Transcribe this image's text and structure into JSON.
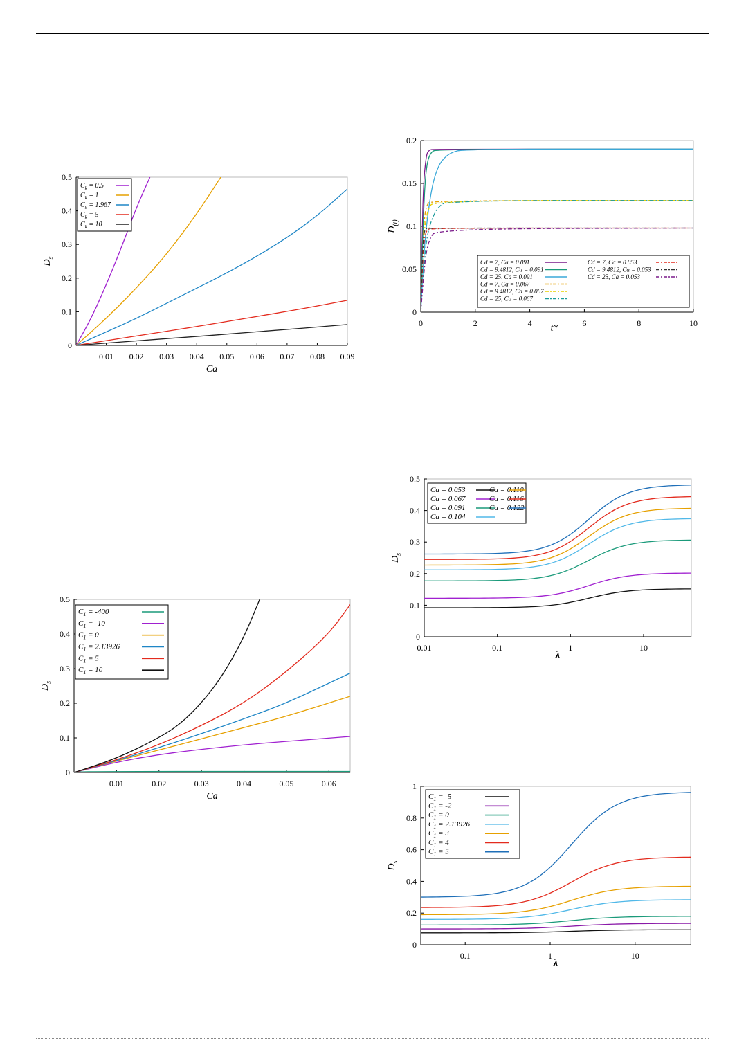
{
  "charts": [
    {
      "id": "c1",
      "type": "line",
      "xlabel": "Ca",
      "ylabel_main": "D",
      "ylabel_sub": "s",
      "xlim": [
        0,
        0.09
      ],
      "ylim": [
        0,
        0.5
      ],
      "xticks": [
        0.01,
        0.02,
        0.03,
        0.04,
        0.05,
        0.06,
        0.07,
        0.08,
        0.09
      ],
      "xtick_labels": [
        "0.01",
        "0.02",
        "0.03",
        "0.04",
        "0.05",
        "0.06",
        "0.07",
        "0.08",
        "0.09"
      ],
      "yticks": [
        0,
        0.1,
        0.2,
        0.3,
        0.4,
        0.5
      ],
      "ytick_labels": [
        "0",
        "0.1",
        "0.2",
        "0.3",
        "0.4",
        "0.5"
      ],
      "legend_position": "top-left",
      "series": [
        {
          "name": "C",
          "sub": "k",
          "suffix": " = 0.5",
          "color": "#a020d0",
          "x": [
            0,
            0.005,
            0.01,
            0.015,
            0.02,
            0.0245
          ],
          "y": [
            0,
            0.08,
            0.18,
            0.29,
            0.41,
            0.5
          ]
        },
        {
          "name": "C",
          "sub": "k",
          "suffix": " = 1",
          "color": "#e6a000",
          "x": [
            0,
            0.01,
            0.02,
            0.03,
            0.04,
            0.048
          ],
          "y": [
            0,
            0.08,
            0.17,
            0.27,
            0.39,
            0.5
          ]
        },
        {
          "name": "C",
          "sub": "k",
          "suffix": " = 1.967",
          "color": "#1f86c6",
          "x": [
            0,
            0.01,
            0.02,
            0.03,
            0.04,
            0.05,
            0.06,
            0.07,
            0.08,
            0.09
          ],
          "y": [
            0,
            0.04,
            0.08,
            0.125,
            0.17,
            0.215,
            0.265,
            0.32,
            0.385,
            0.465
          ]
        },
        {
          "name": "C",
          "sub": "k",
          "suffix": " = 5",
          "color": "#e32b1e",
          "x": [
            0,
            0.01,
            0.02,
            0.03,
            0.04,
            0.05,
            0.06,
            0.07,
            0.08,
            0.09
          ],
          "y": [
            0,
            0.014,
            0.028,
            0.042,
            0.056,
            0.071,
            0.086,
            0.101,
            0.117,
            0.134
          ]
        },
        {
          "name": "C",
          "sub": "k",
          "suffix": " = 10",
          "color": "#222222",
          "x": [
            0,
            0.03,
            0.06,
            0.09
          ],
          "y": [
            0,
            0.02,
            0.04,
            0.062
          ]
        }
      ]
    },
    {
      "id": "c2",
      "type": "line",
      "xlabel": "t*",
      "ylabel_main": "D",
      "ylabel_sub": "(t)",
      "xlim": [
        0,
        10
      ],
      "ylim": [
        0,
        0.2
      ],
      "xticks": [
        0,
        2,
        4,
        6,
        8,
        10
      ],
      "xtick_labels": [
        "0",
        "2",
        "4",
        "6",
        "8",
        "10"
      ],
      "yticks": [
        0,
        0.05,
        0.1,
        0.15,
        0.2
      ],
      "ytick_labels": [
        "0",
        "0.05",
        "0.1",
        "0.15",
        "0.2"
      ],
      "legend_position": "bottom-right",
      "series": [
        {
          "name": "Cd = 7, Ca = 0.091",
          "color": "#7a1a8a",
          "dash": "",
          "x": [
            0,
            0.05,
            0.1,
            0.2,
            0.3,
            0.5,
            10
          ],
          "y": [
            0,
            0.09,
            0.15,
            0.183,
            0.189,
            0.19,
            0.19
          ]
        },
        {
          "name": "Cd = 9.4812, Ca = 0.091",
          "color": "#1a9a7a",
          "dash": "",
          "x": [
            0,
            0.1,
            0.2,
            0.35,
            0.6,
            10
          ],
          "y": [
            0,
            0.12,
            0.17,
            0.186,
            0.19,
            0.19
          ]
        },
        {
          "name": "Cd = 25, Ca = 0.091",
          "color": "#3aa8d8",
          "dash": "",
          "x": [
            0,
            0.1,
            0.2,
            0.4,
            0.6,
            0.8,
            1.1,
            1.6,
            10
          ],
          "y": [
            0,
            0.06,
            0.1,
            0.145,
            0.167,
            0.178,
            0.186,
            0.19,
            0.19
          ]
        },
        {
          "name": "Cd = 7, Ca = 0.067",
          "color": "#e6a000",
          "dash": "6,3,2,3",
          "x": [
            0,
            0.1,
            0.2,
            0.4,
            10
          ],
          "y": [
            0,
            0.1,
            0.125,
            0.13,
            0.13
          ]
        },
        {
          "name": "Cd = 9.4812, Ca = 0.067",
          "color": "#e8d000",
          "dash": "6,3,2,3",
          "x": [
            0,
            0.1,
            0.25,
            0.5,
            10
          ],
          "y": [
            0,
            0.09,
            0.12,
            0.13,
            0.13
          ]
        },
        {
          "name": "Cd = 25, Ca = 0.067",
          "color": "#1a9a9a",
          "dash": "6,3,2,3",
          "x": [
            0,
            0.15,
            0.3,
            0.6,
            1.0,
            10
          ],
          "y": [
            0,
            0.07,
            0.1,
            0.122,
            0.13,
            0.13
          ]
        },
        {
          "name": "Cd = 7, Ca = 0.053",
          "color": "#e32b1e",
          "dash": "6,3,2,3",
          "x": [
            0,
            0.1,
            0.2,
            0.35,
            10
          ],
          "y": [
            0,
            0.08,
            0.095,
            0.098,
            0.098
          ]
        },
        {
          "name": "Cd = 9.4812, Ca = 0.053",
          "color": "#333333",
          "dash": "6,3,2,3",
          "x": [
            0,
            0.08,
            0.15,
            0.3,
            10
          ],
          "y": [
            0,
            0.085,
            0.097,
            0.098,
            0.098
          ]
        },
        {
          "name": "Cd = 25, Ca = 0.053",
          "color": "#7a1a8a",
          "dash": "6,3,2,3",
          "x": [
            0,
            0.15,
            0.3,
            0.6,
            10
          ],
          "y": [
            0,
            0.06,
            0.085,
            0.097,
            0.098
          ]
        }
      ]
    },
    {
      "id": "c3",
      "type": "line",
      "xlabel": "Ca",
      "ylabel_main": "D",
      "ylabel_sub": "s",
      "xlim": [
        0,
        0.065
      ],
      "ylim": [
        0,
        0.5
      ],
      "xticks": [
        0.01,
        0.02,
        0.03,
        0.04,
        0.05,
        0.06
      ],
      "xtick_labels": [
        "0.01",
        "0.02",
        "0.03",
        "0.04",
        "0.05",
        "0.06"
      ],
      "yticks": [
        0,
        0.1,
        0.2,
        0.3,
        0.4,
        0.5
      ],
      "ytick_labels": [
        "0",
        "0.1",
        "0.2",
        "0.3",
        "0.4",
        "0.5"
      ],
      "legend_position": "top-left",
      "series": [
        {
          "name": "C",
          "sub": "1",
          "suffix": " = -400",
          "color": "#1a9a7a",
          "x": [
            0,
            0.002,
            0.065
          ],
          "y": [
            0,
            0.003,
            0.003
          ]
        },
        {
          "name": "C",
          "sub": "1",
          "suffix": " = -10",
          "color": "#a020d0",
          "x": [
            0,
            0.01,
            0.02,
            0.03,
            0.04,
            0.05,
            0.065
          ],
          "y": [
            0,
            0.03,
            0.052,
            0.067,
            0.08,
            0.09,
            0.104
          ]
        },
        {
          "name": "C",
          "sub": "1",
          "suffix": " = 0",
          "color": "#e6a000",
          "x": [
            0,
            0.01,
            0.02,
            0.03,
            0.04,
            0.05,
            0.065
          ],
          "y": [
            0,
            0.033,
            0.065,
            0.097,
            0.13,
            0.162,
            0.22
          ]
        },
        {
          "name": "C",
          "sub": "1",
          "suffix": " = 2.13926",
          "color": "#1f86c6",
          "x": [
            0,
            0.01,
            0.02,
            0.03,
            0.04,
            0.05,
            0.065
          ],
          "y": [
            0,
            0.034,
            0.072,
            0.112,
            0.155,
            0.2,
            0.287
          ]
        },
        {
          "name": "C",
          "sub": "1",
          "suffix": " = 5",
          "color": "#e32b1e",
          "x": [
            0,
            0.01,
            0.02,
            0.03,
            0.04,
            0.05,
            0.06,
            0.065
          ],
          "y": [
            0,
            0.036,
            0.08,
            0.135,
            0.2,
            0.29,
            0.4,
            0.485
          ]
        },
        {
          "name": "C",
          "sub": "1",
          "suffix": " = 10",
          "color": "#111111",
          "x": [
            0,
            0.01,
            0.02,
            0.025,
            0.03,
            0.035,
            0.04,
            0.0437
          ],
          "y": [
            0,
            0.04,
            0.1,
            0.14,
            0.2,
            0.28,
            0.39,
            0.5
          ]
        }
      ]
    },
    {
      "id": "c4",
      "type": "line",
      "xscale": "log",
      "xlabel": "λ",
      "ylabel_main": "D",
      "ylabel_sub": "s",
      "xlim": [
        0.01,
        45
      ],
      "ylim": [
        0,
        0.5
      ],
      "xticks": [
        0.01,
        0.1,
        1,
        10
      ],
      "xtick_labels": [
        "0.01",
        "0.1",
        "1",
        "10"
      ],
      "yticks": [
        0,
        0.1,
        0.2,
        0.3,
        0.4,
        0.5
      ],
      "ytick_labels": [
        "0",
        "0.1",
        "0.2",
        "0.3",
        "0.4",
        "0.5"
      ],
      "legend_position": "top-left",
      "series": [
        {
          "name": "Ca = 0.053",
          "color": "#111111",
          "lo": 0.092,
          "hi": 0.152
        },
        {
          "name": "Ca = 0.067",
          "color": "#a020d0",
          "lo": 0.122,
          "hi": 0.202
        },
        {
          "name": "Ca = 0.091",
          "color": "#1a9a7a",
          "lo": 0.177,
          "hi": 0.307
        },
        {
          "name": "Ca = 0.104",
          "color": "#50b8e8",
          "lo": 0.212,
          "hi": 0.375
        },
        {
          "name": "Ca = 0.110",
          "color": "#e6a000",
          "lo": 0.227,
          "hi": 0.408
        },
        {
          "name": "Ca = 0.116",
          "color": "#e32b1e",
          "lo": 0.245,
          "hi": 0.445
        },
        {
          "name": "Ca = 0.122",
          "color": "#1f6fb8",
          "lo": 0.262,
          "hi": 0.482
        }
      ]
    },
    {
      "id": "c5",
      "type": "line",
      "xscale": "log",
      "xlabel": "λ",
      "ylabel_main": "D",
      "ylabel_sub": "s",
      "xlim": [
        0.03,
        45
      ],
      "ylim": [
        0,
        1
      ],
      "xticks": [
        0.1,
        1,
        10
      ],
      "xtick_labels": [
        "0.1",
        "1",
        "10"
      ],
      "yticks": [
        0,
        0.2,
        0.4,
        0.6,
        0.8,
        1
      ],
      "ytick_labels": [
        "0",
        "0.2",
        "0.4",
        "0.6",
        "0.8",
        "1"
      ],
      "legend_position": "top-left",
      "series": [
        {
          "name": "C",
          "sub": "1",
          "suffix": " = -5",
          "color": "#111111",
          "lo": 0.075,
          "hi": 0.095
        },
        {
          "name": "C",
          "sub": "1",
          "suffix": " = -2",
          "color": "#8a1aa8",
          "lo": 0.1,
          "hi": 0.135
        },
        {
          "name": "C",
          "sub": "1",
          "suffix": " = 0",
          "color": "#1a9a7a",
          "lo": 0.125,
          "hi": 0.18
        },
        {
          "name": "C",
          "sub": "1",
          "suffix": " = 2.13926",
          "color": "#50b8e8",
          "lo": 0.16,
          "hi": 0.285
        },
        {
          "name": "C",
          "sub": "1",
          "suffix": " = 3",
          "color": "#e6a000",
          "lo": 0.19,
          "hi": 0.37
        },
        {
          "name": "C",
          "sub": "1",
          "suffix": " = 4",
          "color": "#e32b1e",
          "lo": 0.235,
          "hi": 0.555
        },
        {
          "name": "C",
          "sub": "1",
          "suffix": " = 5",
          "color": "#1f6fb8",
          "lo": 0.3,
          "hi": 0.965
        }
      ]
    }
  ]
}
